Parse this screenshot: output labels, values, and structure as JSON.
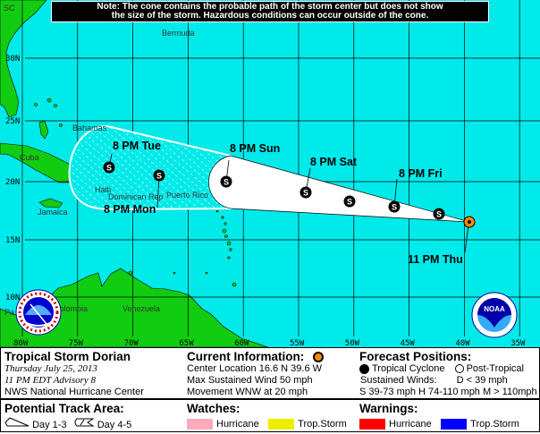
{
  "note": {
    "line1": "Note: The cone contains the probable path of the storm center but does not show",
    "line2": "the size of the storm. Hazardous conditions can occur outside of the cone."
  },
  "map": {
    "colors": {
      "ocean": "#00eaea",
      "land": "#11cc11",
      "cone_day1_3": "#ffffff",
      "current_position": "#ff8800"
    },
    "lat_labels": [
      "30N",
      "25N",
      "20N",
      "15N",
      "10N"
    ],
    "lon_labels": [
      "80W",
      "75W",
      "70W",
      "65W",
      "60W",
      "55W",
      "50W",
      "45W",
      "40W",
      "35W"
    ],
    "place_labels": {
      "sc": "SC",
      "bermuda": "Bermuda",
      "bahamas": "Bahamas",
      "cuba": "Cuba",
      "haiti": "Haiti",
      "dominican_rep": "Dominican Rep",
      "puerto_rico": "Puerto Rico",
      "jamaica": "Jamaica",
      "panama": "Pa",
      "colombia": "Colombia",
      "venezuela": "Venezuela"
    },
    "forecast_points": [
      {
        "label": "11 PM Thu",
        "intensity": "current"
      },
      {
        "label": "8 PM Fri",
        "intensity": "S"
      },
      {
        "label": "8 PM Sat",
        "intensity": "S"
      },
      {
        "label": "8 PM Sun",
        "intensity": "S"
      },
      {
        "label": "8 PM Mon",
        "intensity": "S"
      },
      {
        "label": "8 PM Tue",
        "intensity": "S"
      }
    ],
    "intermediate_intensity": "S",
    "logos": {
      "nws": "National Weather Service",
      "noaa": "NOAA"
    }
  },
  "storm": {
    "name": "Tropical Storm Dorian",
    "date": "Thursday  July 25, 2013",
    "advisory": "11 PM EDT Advisory 8",
    "center": "NWS National Hurricane Center"
  },
  "current": {
    "title": "Current Information:",
    "location": "Center Location 16.6 N  39.6 W",
    "wind": "Max Sustained Wind  50 mph",
    "movement": "Movement WNW at  20 mph"
  },
  "forecast": {
    "title": "Forecast Positions:",
    "tropical": "Tropical Cyclone",
    "post_tropical": "Post-Tropical",
    "sustained": "Sustained Winds:",
    "d": "D  < 39 mph",
    "scale": "S  39-73 mph  H  74-110 mph  M  > 110mph"
  },
  "track_area": {
    "title": "Potential Track Area:",
    "day13": "Day 1-3",
    "day45": "Day 4-5"
  },
  "watches": {
    "title": "Watches:",
    "hurricane": "Hurricane",
    "hurricane_color": "#ffaabb",
    "ts": "Trop.Storm",
    "ts_color": "#eeee00"
  },
  "warnings": {
    "title": "Warnings:",
    "hurricane": "Hurricane",
    "hurricane_color": "#ff0000",
    "ts": "Trop.Storm",
    "ts_color": "#0000ff"
  }
}
